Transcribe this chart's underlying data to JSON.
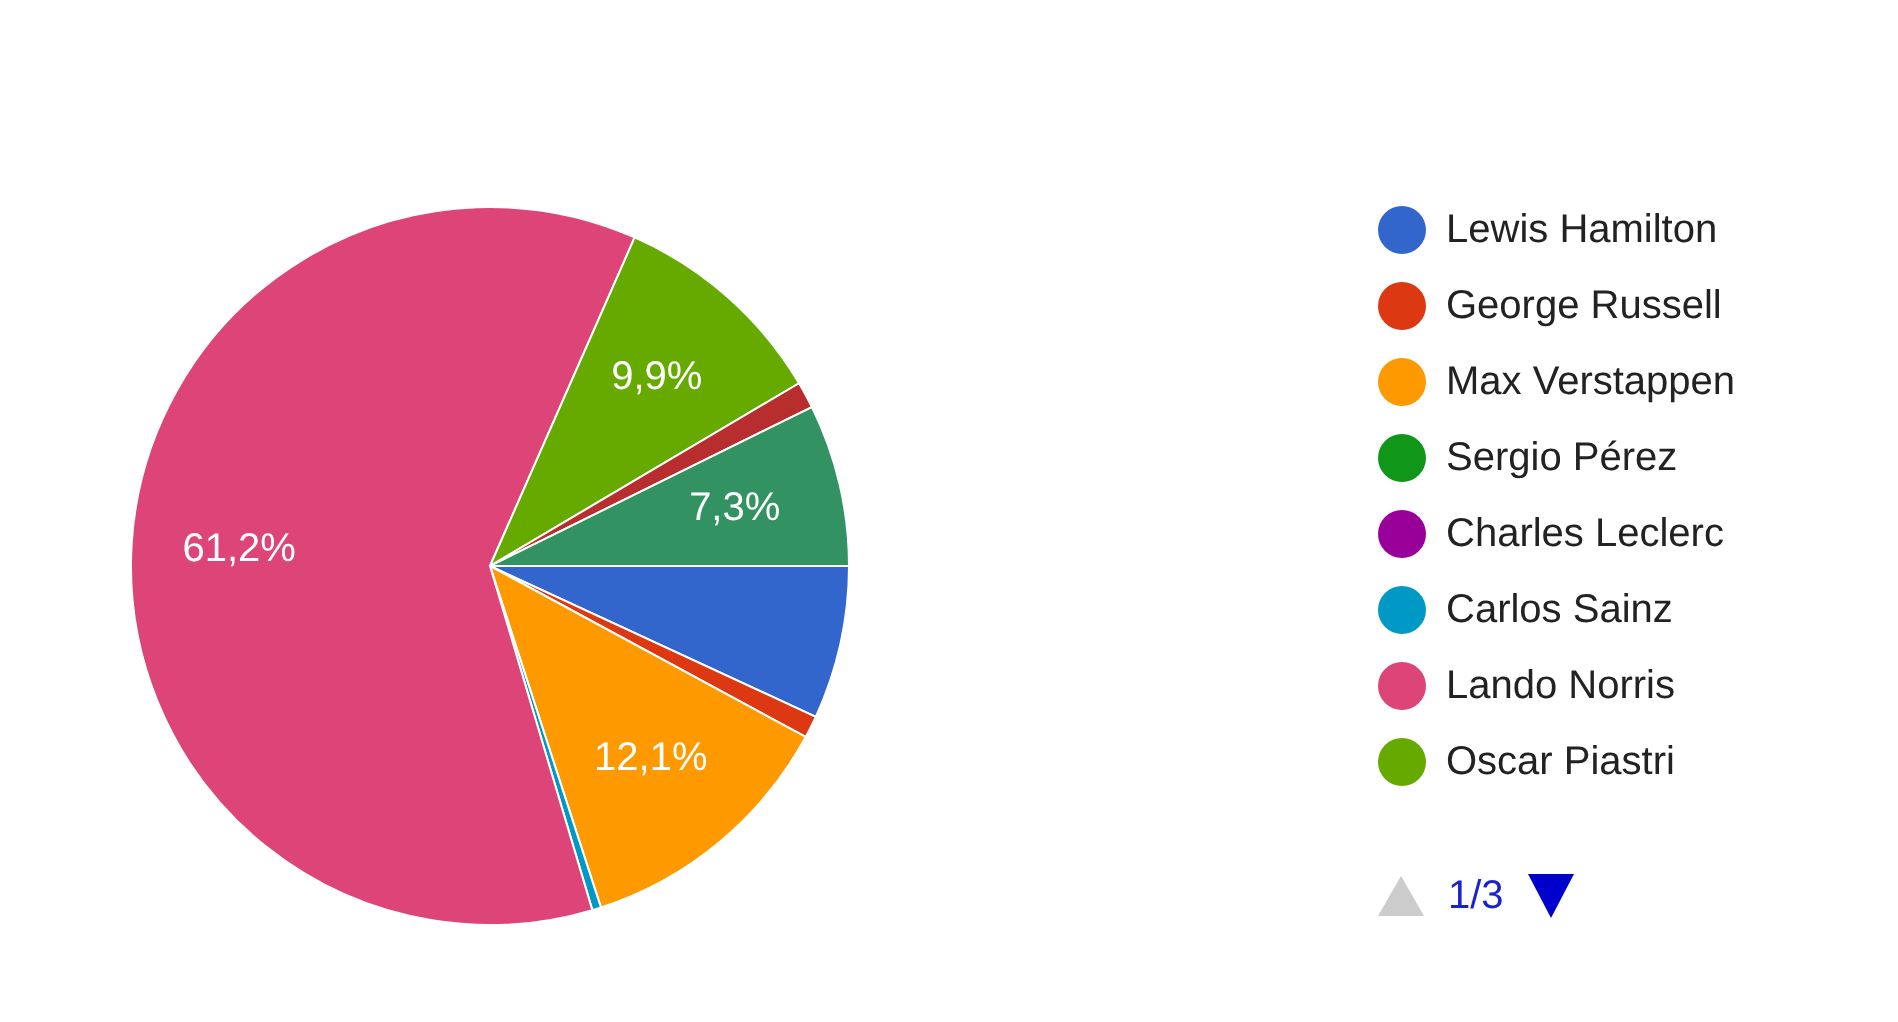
{
  "chart_data": {
    "type": "pie",
    "categories": [
      "Lewis Hamilton",
      "George Russell",
      "Max Verstappen",
      "Sergio Pérez",
      "Charles Leclerc",
      "Carlos Sainz",
      "Lando Norris",
      "Oscar Piastri",
      null,
      null
    ],
    "values": [
      6.9,
      1.0,
      12.1,
      0,
      0,
      0.4,
      61.2,
      9.9,
      1.2,
      7.3
    ],
    "colors": [
      "#3366cc",
      "#dc3912",
      "#ff9900",
      "#109618",
      "#990099",
      "#0099c6",
      "#dd4477",
      "#66aa00",
      "#b82e2e",
      "#329262"
    ],
    "value_labels": [
      null,
      null,
      "12,1%",
      null,
      null,
      null,
      "61,2%",
      "9,9%",
      null,
      "7,3%"
    ],
    "legend": "right",
    "annotations": [
      "1/3"
    ]
  }
}
